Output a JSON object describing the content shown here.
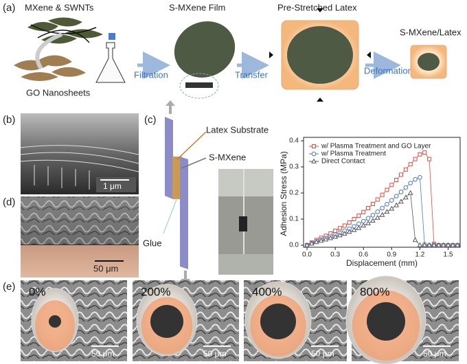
{
  "panel_a": {
    "label": "(a)",
    "mxene": "MXene & SWNTs",
    "go": "GO Nanosheets",
    "filtration": "Filtration",
    "film": "S-MXene Film",
    "transfer": "Transfer",
    "latex": "Pre-Stretched Latex",
    "deformation": "Deformation",
    "composite": "S-MXene/Latex"
  },
  "panel_b": {
    "label": "(b)",
    "scale": "1 μm"
  },
  "panel_c": {
    "label": "(c)",
    "latex": "Latex Substrate",
    "smxene": "S-MXene",
    "glue": "Glue"
  },
  "panel_d": {
    "label": "(d)",
    "scale": "50 μm"
  },
  "panel_e": {
    "label": "(e)",
    "strains": [
      "0%",
      "200%",
      "400%",
      "800%"
    ],
    "scales": [
      "50 μm",
      "50 μm",
      "50 μm",
      "50 μm"
    ]
  },
  "chart_data": {
    "type": "line",
    "x_label": "Displacement (mm)",
    "y_label": "Adhesion Stress (MPa)",
    "x": [
      0,
      0.05,
      0.1,
      0.15,
      0.2,
      0.25,
      0.3,
      0.35,
      0.4,
      0.45,
      0.5,
      0.55,
      0.6,
      0.65,
      0.7,
      0.75,
      0.8,
      0.85,
      0.9,
      0.95,
      1.0,
      1.05,
      1.1,
      1.15,
      1.2,
      1.25,
      1.3,
      1.35,
      1.4,
      1.45,
      1.5,
      1.55,
      1.6
    ],
    "series": [
      {
        "name": "w/ Plasma Treatment and GO Layer",
        "color": "#e8473b",
        "marker": "square",
        "values": [
          0,
          0.01,
          0.02,
          0.028,
          0.036,
          0.045,
          0.055,
          0.065,
          0.075,
          0.087,
          0.1,
          0.113,
          0.127,
          0.142,
          0.158,
          0.175,
          0.193,
          0.212,
          0.231,
          0.25,
          0.27,
          0.29,
          0.31,
          0.33,
          0.348,
          0.355,
          0.33,
          0.005,
          0,
          0,
          0,
          0,
          0
        ]
      },
      {
        "name": "w/ Plasma Treatment",
        "color": "#4a78c8",
        "marker": "circle",
        "values": [
          0,
          0.008,
          0.015,
          0.021,
          0.027,
          0.033,
          0.04,
          0.047,
          0.055,
          0.063,
          0.072,
          0.082,
          0.092,
          0.103,
          0.115,
          0.128,
          0.142,
          0.157,
          0.172,
          0.188,
          0.204,
          0.221,
          0.238,
          0.252,
          0.26,
          0.003,
          0,
          0,
          0,
          0,
          0,
          0,
          0
        ]
      },
      {
        "name": "Direct Contact",
        "color": "#555555",
        "marker": "triangle",
        "values": [
          0,
          0.006,
          0.012,
          0.017,
          0.022,
          0.027,
          0.032,
          0.038,
          0.044,
          0.051,
          0.058,
          0.066,
          0.075,
          0.084,
          0.094,
          0.105,
          0.116,
          0.128,
          0.14,
          0.153,
          0.167,
          0.183,
          0.2,
          0.02,
          0,
          0,
          0,
          0,
          0,
          0,
          0,
          0,
          0
        ]
      }
    ],
    "xlim": [
      0,
      1.65
    ],
    "ylim": [
      0,
      0.42
    ],
    "xticks": [
      {
        "value": 0,
        "label": "0.0"
      },
      0.3,
      0.6,
      0.9,
      1.2,
      1.5
    ],
    "yticks": [
      {
        "value": 0,
        "label": "0.0"
      },
      0.1,
      0.2,
      0.3,
      0.4
    ],
    "legend": "upper-left"
  }
}
